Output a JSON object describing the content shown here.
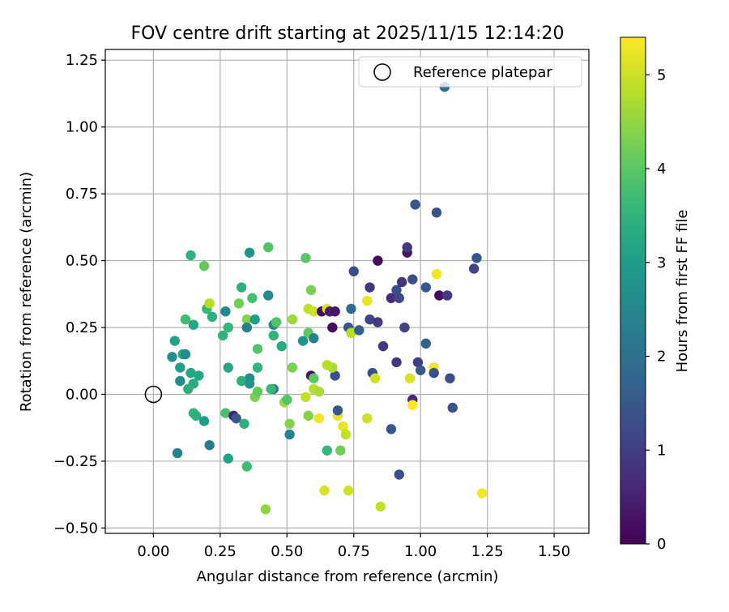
{
  "chart_data": {
    "type": "scatter",
    "title": "FOV centre drift starting at 2025/11/15 12:14:20",
    "xlabel": "Angular distance from reference (arcmin)",
    "ylabel": "Rotation from reference (arcmin)",
    "xlim": [
      -0.18,
      1.63
    ],
    "ylim": [
      -0.52,
      1.29
    ],
    "grid": true,
    "x_ticks": [
      0.0,
      0.25,
      0.5,
      0.75,
      1.0,
      1.25,
      1.5
    ],
    "x_tick_labels": [
      "0.00",
      "0.25",
      "0.50",
      "0.75",
      "1.00",
      "1.25",
      "1.50"
    ],
    "y_ticks": [
      -0.5,
      -0.25,
      0.0,
      0.25,
      0.5,
      0.75,
      1.0,
      1.25
    ],
    "y_tick_labels": [
      "−0.50",
      "−0.25",
      "0.00",
      "0.25",
      "0.50",
      "0.75",
      "1.00",
      "1.25"
    ],
    "legend": {
      "label": "Reference platepar",
      "location": "upper right"
    },
    "reference_point": {
      "x": 0.0,
      "y": 0.0
    },
    "colorbar": {
      "label": "Hours from first FF file",
      "min": 0,
      "max": 5.4,
      "ticks": [
        0,
        1,
        2,
        3,
        4,
        5
      ],
      "tick_labels": [
        "0",
        "1",
        "2",
        "3",
        "4",
        "5"
      ],
      "colormap": "viridis",
      "colors": [
        "#440154",
        "#482878",
        "#3e4989",
        "#31688e",
        "#26828e",
        "#1f9e89",
        "#35b779",
        "#6ece58",
        "#b5de2b",
        "#fde725"
      ]
    },
    "points": [
      [
        0.09,
        -0.22,
        2.4
      ],
      [
        0.1,
        0.05,
        2.6
      ],
      [
        0.15,
        0.04,
        3.3
      ],
      [
        0.17,
        0.07,
        3.2
      ],
      [
        0.13,
        0.02,
        3.4
      ],
      [
        0.07,
        0.14,
        2.7
      ],
      [
        0.08,
        0.2,
        3.1
      ],
      [
        0.1,
        0.1,
        3.0
      ],
      [
        0.11,
        0.15,
        3.3
      ],
      [
        0.12,
        0.15,
        2.6
      ],
      [
        0.14,
        0.08,
        3.2
      ],
      [
        0.15,
        -0.07,
        3.6
      ],
      [
        0.16,
        -0.08,
        3.4
      ],
      [
        0.19,
        -0.1,
        3.0
      ],
      [
        0.21,
        -0.19,
        2.2
      ],
      [
        0.14,
        0.52,
        3.5
      ],
      [
        0.19,
        0.48,
        4.1
      ],
      [
        0.2,
        0.32,
        3.6
      ],
      [
        0.21,
        0.34,
        4.8
      ],
      [
        0.22,
        0.29,
        3.4
      ],
      [
        0.12,
        0.28,
        3.7
      ],
      [
        0.15,
        0.26,
        3.2
      ],
      [
        0.26,
        0.22,
        3.5
      ],
      [
        0.27,
        0.31,
        2.5
      ],
      [
        0.28,
        0.25,
        3.6
      ],
      [
        0.27,
        -0.07,
        3.8
      ],
      [
        0.3,
        -0.08,
        0.5
      ],
      [
        0.31,
        -0.09,
        1.5
      ],
      [
        0.28,
        -0.24,
        3.1
      ],
      [
        0.28,
        0.1,
        3.2
      ],
      [
        0.33,
        0.4,
        3.4
      ],
      [
        0.32,
        0.34,
        4.2
      ],
      [
        0.35,
        0.28,
        4.4
      ],
      [
        0.36,
        0.53,
        2.8
      ],
      [
        0.35,
        0.25,
        2.3
      ],
      [
        0.36,
        0.06,
        2.6
      ],
      [
        0.37,
        0.36,
        3.8
      ],
      [
        0.38,
        0.28,
        3.0
      ],
      [
        0.39,
        0.17,
        3.9
      ],
      [
        0.39,
        0.1,
        3.5
      ],
      [
        0.33,
        0.05,
        3.4
      ],
      [
        0.36,
        0.04,
        2.7
      ],
      [
        0.34,
        -0.11,
        3.4
      ],
      [
        0.35,
        -0.27,
        3.7
      ],
      [
        0.38,
        -0.01,
        4.3
      ],
      [
        0.39,
        0.01,
        4.1
      ],
      [
        0.42,
        -0.43,
        4.5
      ],
      [
        0.43,
        0.55,
        3.9
      ],
      [
        0.43,
        0.37,
        2.6
      ],
      [
        0.45,
        0.26,
        2.5
      ],
      [
        0.46,
        0.27,
        3.9
      ],
      [
        0.45,
        0.22,
        3.5
      ],
      [
        0.45,
        0.02,
        2.3
      ],
      [
        0.44,
        0.02,
        3.6
      ],
      [
        0.49,
        -0.03,
        4.6
      ],
      [
        0.48,
        0.18,
        3.3
      ],
      [
        0.5,
        -0.02,
        3.9
      ],
      [
        0.51,
        -0.11,
        4.4
      ],
      [
        0.51,
        -0.15,
        2.4
      ],
      [
        0.52,
        0.1,
        4.3
      ],
      [
        0.52,
        0.28,
        4.6
      ],
      [
        0.56,
        0.2,
        2.8
      ],
      [
        0.57,
        0.51,
        4.0
      ],
      [
        0.58,
        0.32,
        4.9
      ],
      [
        0.58,
        0.23,
        4.0
      ],
      [
        0.59,
        0.39,
        4.3
      ],
      [
        0.6,
        0.31,
        5.0
      ],
      [
        0.59,
        0.07,
        0.3
      ],
      [
        0.6,
        0.06,
        4.0
      ],
      [
        0.6,
        0.21,
        2.4
      ],
      [
        0.57,
        -0.01,
        4.9
      ],
      [
        0.58,
        -0.08,
        4.4
      ],
      [
        0.6,
        0.02,
        4.8
      ],
      [
        0.62,
        -0.09,
        5.3
      ],
      [
        0.62,
        0.01,
        4.7
      ],
      [
        0.63,
        0.31,
        0.2
      ],
      [
        0.65,
        0.32,
        5.1
      ],
      [
        0.66,
        0.31,
        0.4
      ],
      [
        0.68,
        0.31,
        0.3
      ],
      [
        0.67,
        0.25,
        0.2
      ],
      [
        0.68,
        0.07,
        1.3
      ],
      [
        0.67,
        0.1,
        4.7
      ],
      [
        0.65,
        0.11,
        4.8
      ],
      [
        0.65,
        -0.21,
        3.6
      ],
      [
        0.69,
        -0.08,
        5.2
      ],
      [
        0.69,
        -0.06,
        1.5
      ],
      [
        0.7,
        -0.21,
        4.2
      ],
      [
        0.71,
        -0.12,
        5.2
      ],
      [
        0.72,
        -0.15,
        4.9
      ],
      [
        0.73,
        -0.36,
        5.0
      ],
      [
        0.64,
        -0.36,
        5.1
      ],
      [
        0.73,
        0.25,
        1.4
      ],
      [
        0.74,
        0.32,
        1.9
      ],
      [
        0.74,
        0.23,
        4.8
      ],
      [
        0.75,
        0.46,
        1.3
      ],
      [
        0.77,
        0.24,
        1.6
      ],
      [
        0.8,
        0.35,
        5.2
      ],
      [
        0.81,
        0.4,
        0.9
      ],
      [
        0.81,
        0.28,
        1.1
      ],
      [
        0.82,
        0.08,
        1.3
      ],
      [
        0.83,
        0.06,
        5.0
      ],
      [
        0.84,
        0.27,
        0.9
      ],
      [
        0.84,
        0.5,
        0.1
      ],
      [
        0.85,
        -0.42,
        4.9
      ],
      [
        0.86,
        0.18,
        0.9
      ],
      [
        0.8,
        -0.09,
        5.0
      ],
      [
        0.89,
        0.36,
        0.7
      ],
      [
        0.89,
        -0.13,
        1.5
      ],
      [
        0.91,
        0.39,
        1.3
      ],
      [
        0.91,
        0.12,
        0.9
      ],
      [
        0.92,
        -0.3,
        1.3
      ],
      [
        0.92,
        0.36,
        1.2
      ],
      [
        0.93,
        0.42,
        0.8
      ],
      [
        0.94,
        0.25,
        1.1
      ],
      [
        0.95,
        0.53,
        0.3
      ],
      [
        0.95,
        0.55,
        0.9
      ],
      [
        0.97,
        0.43,
        1.3
      ],
      [
        0.96,
        0.06,
        5.1
      ],
      [
        0.97,
        -0.02,
        0.6
      ],
      [
        0.97,
        -0.04,
        5.4
      ],
      [
        0.98,
        0.71,
        1.5
      ],
      [
        0.99,
        0.12,
        1.0
      ],
      [
        1.0,
        0.09,
        1.5
      ],
      [
        1.02,
        0.4,
        1.5
      ],
      [
        1.02,
        0.19,
        1.7
      ],
      [
        1.05,
        0.1,
        5.3
      ],
      [
        1.05,
        0.08,
        1.3
      ],
      [
        1.06,
        0.68,
        1.4
      ],
      [
        1.06,
        0.45,
        5.3
      ],
      [
        1.07,
        0.37,
        0.2
      ],
      [
        1.09,
        1.15,
        1.9
      ],
      [
        1.1,
        0.37,
        0.9
      ],
      [
        1.11,
        0.06,
        1.3
      ],
      [
        1.12,
        -0.05,
        1.4
      ],
      [
        1.2,
        0.47,
        1.1
      ],
      [
        1.21,
        0.51,
        1.5
      ],
      [
        1.23,
        -0.37,
        5.3
      ]
    ]
  }
}
